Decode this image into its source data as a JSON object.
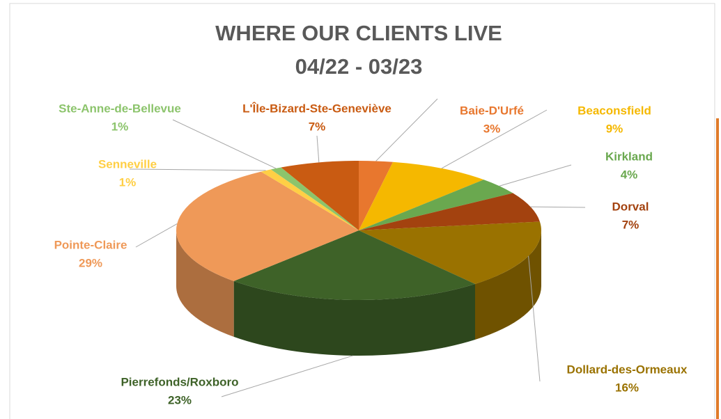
{
  "chart_data": {
    "type": "pie",
    "title": "WHERE OUR CLIENTS LIVE",
    "subtitle": "04/22 - 03/23",
    "categories": [
      "Baie-D'Urfé",
      "Beaconsfield",
      "Kirkland",
      "Dorval",
      "Dollard-des-Ormeaux",
      "Pierrefonds/Roxboro",
      "Pointe-Claire",
      "Senneville",
      "Ste-Anne-de-Bellevue",
      "L'Île-Bizard-Ste-Geneviève"
    ],
    "values": [
      3,
      9,
      4,
      7,
      16,
      23,
      29,
      1,
      1,
      7
    ],
    "value_labels": [
      "3%",
      "9%",
      "4%",
      "7%",
      "16%",
      "23%",
      "29%",
      "1%",
      "1%",
      "7%"
    ],
    "colors": [
      "#e8772e",
      "#f5b800",
      "#6aa84f",
      "#a3420f",
      "#9a7200",
      "#3e6228",
      "#ef9958",
      "#ffcf45",
      "#8cc46c",
      "#c95b12"
    ]
  }
}
